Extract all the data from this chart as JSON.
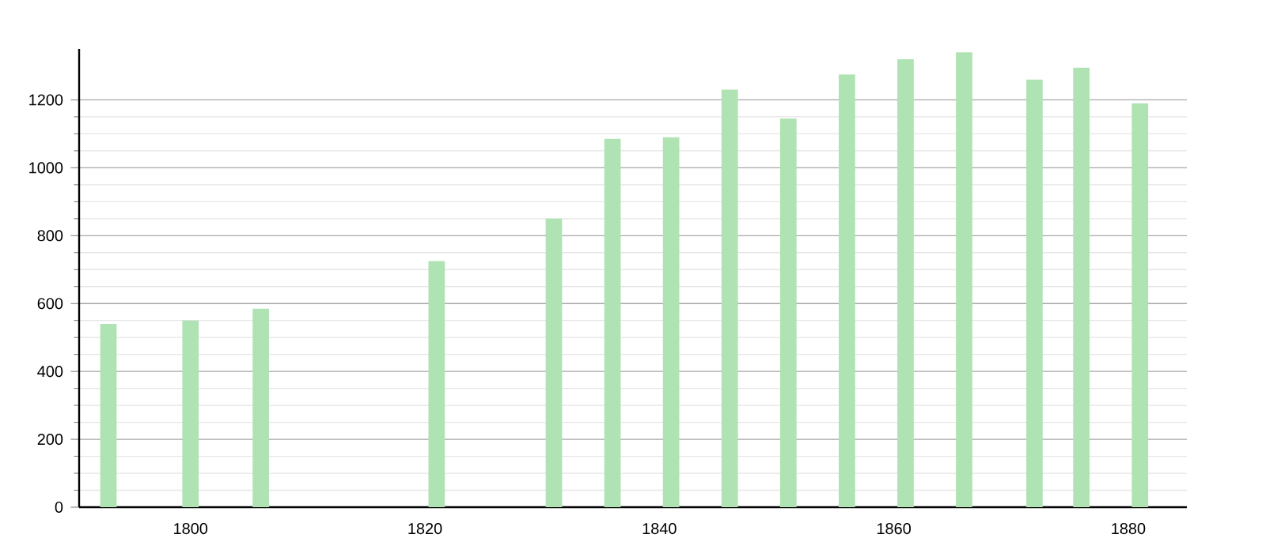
{
  "chart_data": {
    "type": "bar",
    "x": [
      1793,
      1800,
      1806,
      1821,
      1831,
      1836,
      1841,
      1846,
      1851,
      1856,
      1861,
      1866,
      1872,
      1876,
      1881
    ],
    "values": [
      540,
      550,
      585,
      725,
      850,
      1085,
      1090,
      1230,
      1145,
      1275,
      1320,
      1340,
      1260,
      1295,
      1190
    ],
    "color": "#b0e3b4",
    "xlim": [
      1790.5,
      1885
    ],
    "xticks": [
      1800,
      1820,
      1840,
      1860,
      1880
    ],
    "ylim": [
      0,
      1350
    ],
    "yticks": [
      0,
      200,
      400,
      600,
      800,
      1000,
      1200
    ],
    "grid": "y"
  }
}
